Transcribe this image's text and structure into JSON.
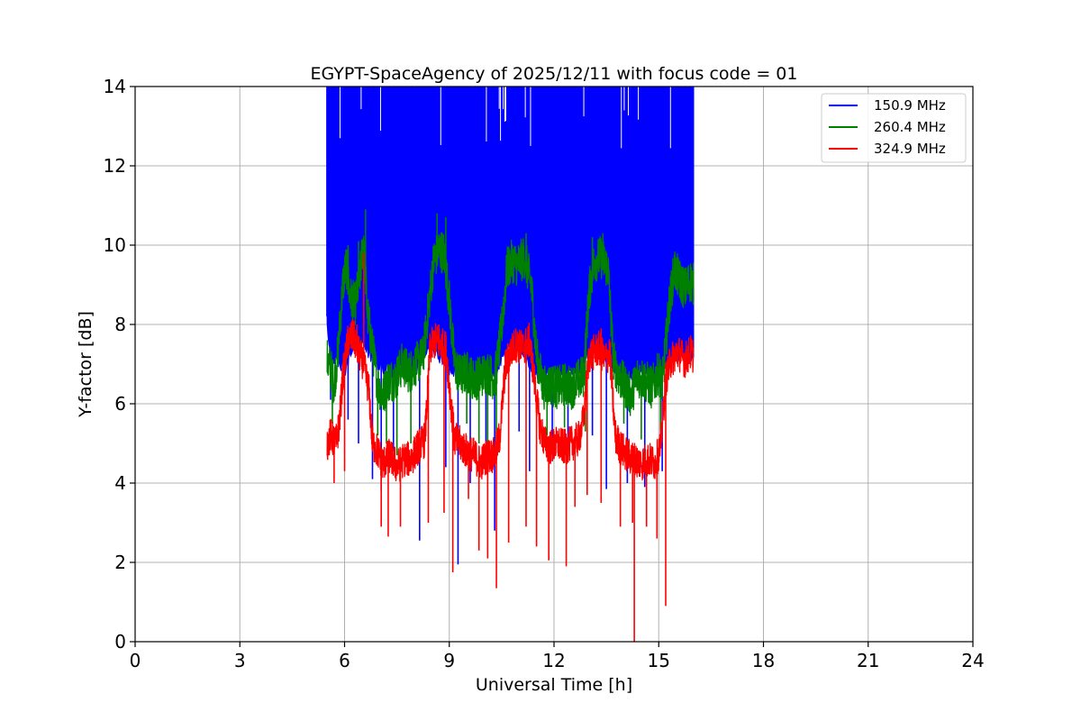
{
  "chart_data": {
    "type": "line",
    "title": "EGYPT-SpaceAgency of 2025/12/11 with focus code = 01",
    "xlabel": "Universal Time [h]",
    "ylabel": "Y-factor [dB]",
    "xlim": [
      0,
      24
    ],
    "ylim": [
      0,
      14
    ],
    "xticks": [
      0,
      3,
      6,
      9,
      12,
      15,
      18,
      21,
      24
    ],
    "yticks": [
      0,
      2,
      4,
      6,
      8,
      10,
      12,
      14
    ],
    "grid": true,
    "legend_position": "top-right",
    "series": [
      {
        "name": "150.9 MHz",
        "color": "#0000ff",
        "filled_band": true,
        "x_range": [
          5.5,
          16.0
        ],
        "upper": [
          [
            5.5,
            14.0
          ],
          [
            16.0,
            14.0
          ]
        ],
        "lower": [
          [
            5.5,
            8.3
          ],
          [
            5.6,
            7.1
          ],
          [
            5.8,
            7.3
          ],
          [
            6.0,
            7.0
          ],
          [
            6.3,
            7.6
          ],
          [
            6.6,
            7.6
          ],
          [
            6.9,
            7.1
          ],
          [
            7.2,
            7.0
          ],
          [
            7.5,
            7.0
          ],
          [
            7.8,
            7.1
          ],
          [
            8.1,
            7.1
          ],
          [
            8.4,
            7.6
          ],
          [
            8.7,
            7.4
          ],
          [
            9.0,
            7.0
          ],
          [
            9.3,
            6.9
          ],
          [
            9.6,
            7.0
          ],
          [
            9.9,
            6.9
          ],
          [
            10.2,
            6.9
          ],
          [
            10.5,
            7.3
          ],
          [
            10.8,
            7.6
          ],
          [
            11.1,
            7.4
          ],
          [
            11.4,
            7.0
          ],
          [
            11.7,
            6.9
          ],
          [
            12.0,
            6.9
          ],
          [
            12.3,
            6.9
          ],
          [
            12.6,
            7.0
          ],
          [
            12.9,
            7.3
          ],
          [
            13.2,
            7.5
          ],
          [
            13.5,
            7.3
          ],
          [
            13.8,
            7.0
          ],
          [
            14.1,
            6.9
          ],
          [
            14.4,
            6.9
          ],
          [
            14.7,
            6.9
          ],
          [
            15.0,
            6.9
          ],
          [
            15.3,
            7.2
          ],
          [
            15.6,
            7.4
          ],
          [
            16.0,
            7.4
          ]
        ],
        "dips": [
          [
            5.6,
            6.1
          ],
          [
            6.1,
            5.6
          ],
          [
            6.4,
            5.0
          ],
          [
            6.8,
            4.1
          ],
          [
            7.05,
            3.8
          ],
          [
            7.4,
            4.8
          ],
          [
            8.15,
            2.55
          ],
          [
            8.9,
            4.4
          ],
          [
            9.25,
            1.95
          ],
          [
            9.6,
            4.0
          ],
          [
            10.05,
            4.6
          ],
          [
            10.3,
            2.8
          ],
          [
            11.0,
            5.3
          ],
          [
            11.3,
            4.3
          ],
          [
            11.95,
            4.55
          ],
          [
            12.4,
            4.8
          ],
          [
            13.1,
            5.2
          ],
          [
            13.5,
            3.85
          ],
          [
            14.1,
            4.0
          ],
          [
            14.6,
            3.9
          ],
          [
            15.1,
            4.3
          ]
        ]
      },
      {
        "name": "260.4 MHz",
        "color": "#008000",
        "points": [
          [
            5.5,
            7.1
          ],
          [
            5.6,
            6.9
          ],
          [
            5.7,
            6.5
          ],
          [
            5.8,
            7.2
          ],
          [
            5.95,
            9.0
          ],
          [
            6.05,
            9.5
          ],
          [
            6.15,
            8.7
          ],
          [
            6.3,
            8.5
          ],
          [
            6.45,
            9.3
          ],
          [
            6.55,
            10.2
          ],
          [
            6.65,
            8.3
          ],
          [
            6.8,
            7.4
          ],
          [
            6.95,
            6.5
          ],
          [
            7.1,
            6.2
          ],
          [
            7.25,
            6.6
          ],
          [
            7.45,
            6.6
          ],
          [
            7.65,
            7.0
          ],
          [
            7.85,
            6.8
          ],
          [
            8.05,
            7.0
          ],
          [
            8.25,
            7.2
          ],
          [
            8.4,
            8.4
          ],
          [
            8.55,
            9.6
          ],
          [
            8.7,
            9.9
          ],
          [
            8.85,
            9.8
          ],
          [
            9.0,
            8.6
          ],
          [
            9.15,
            7.0
          ],
          [
            9.3,
            6.7
          ],
          [
            9.5,
            6.8
          ],
          [
            9.7,
            6.6
          ],
          [
            9.9,
            6.7
          ],
          [
            10.1,
            6.8
          ],
          [
            10.3,
            6.6
          ],
          [
            10.5,
            7.9
          ],
          [
            10.65,
            9.4
          ],
          [
            10.8,
            9.6
          ],
          [
            10.95,
            9.5
          ],
          [
            11.15,
            9.7
          ],
          [
            11.35,
            9.0
          ],
          [
            11.5,
            7.2
          ],
          [
            11.7,
            6.4
          ],
          [
            11.9,
            6.5
          ],
          [
            12.1,
            6.4
          ],
          [
            12.3,
            6.5
          ],
          [
            12.5,
            6.4
          ],
          [
            12.7,
            6.6
          ],
          [
            12.85,
            6.7
          ],
          [
            13.0,
            8.8
          ],
          [
            13.15,
            9.6
          ],
          [
            13.35,
            9.7
          ],
          [
            13.55,
            9.4
          ],
          [
            13.7,
            7.1
          ],
          [
            13.85,
            6.7
          ],
          [
            14.0,
            6.5
          ],
          [
            14.2,
            6.2
          ],
          [
            14.4,
            6.7
          ],
          [
            14.6,
            6.6
          ],
          [
            14.8,
            6.4
          ],
          [
            15.0,
            6.8
          ],
          [
            15.1,
            6.5
          ],
          [
            15.3,
            8.5
          ],
          [
            15.45,
            9.4
          ],
          [
            15.6,
            9.1
          ],
          [
            15.75,
            8.9
          ],
          [
            15.9,
            9.1
          ],
          [
            16.0,
            9.0
          ]
        ],
        "spikes": [
          [
            6.1,
            10.0
          ],
          [
            6.4,
            10.1
          ],
          [
            6.6,
            10.9
          ],
          [
            8.65,
            10.8
          ],
          [
            8.9,
            10.7
          ],
          [
            11.2,
            10.3
          ],
          [
            13.4,
            10.3
          ],
          [
            13.1,
            10.2
          ],
          [
            15.6,
            9.6
          ]
        ],
        "dips": [
          [
            5.65,
            5.5
          ],
          [
            6.95,
            5.2
          ],
          [
            7.2,
            5.0
          ],
          [
            7.5,
            4.7
          ],
          [
            7.9,
            5.0
          ],
          [
            9.5,
            5.5
          ],
          [
            9.85,
            5.0
          ],
          [
            10.1,
            4.8
          ],
          [
            10.35,
            5.0
          ],
          [
            11.8,
            5.2
          ],
          [
            12.3,
            5.4
          ],
          [
            12.9,
            5.3
          ],
          [
            14.0,
            5.5
          ],
          [
            14.5,
            5.1
          ],
          [
            15.05,
            5.3
          ]
        ]
      },
      {
        "name": "324.9 MHz",
        "color": "#ff0000",
        "points": [
          [
            5.5,
            5.0
          ],
          [
            5.6,
            5.2
          ],
          [
            5.75,
            5.0
          ],
          [
            5.85,
            5.5
          ],
          [
            5.95,
            6.7
          ],
          [
            6.1,
            7.6
          ],
          [
            6.25,
            7.7
          ],
          [
            6.4,
            7.3
          ],
          [
            6.55,
            7.0
          ],
          [
            6.7,
            6.3
          ],
          [
            6.8,
            5.0
          ],
          [
            6.95,
            4.8
          ],
          [
            7.1,
            4.5
          ],
          [
            7.3,
            4.7
          ],
          [
            7.5,
            4.4
          ],
          [
            7.7,
            4.6
          ],
          [
            7.9,
            4.6
          ],
          [
            8.1,
            4.9
          ],
          [
            8.3,
            5.1
          ],
          [
            8.45,
            7.4
          ],
          [
            8.6,
            7.6
          ],
          [
            8.75,
            7.5
          ],
          [
            8.9,
            7.4
          ],
          [
            9.05,
            6.0
          ],
          [
            9.15,
            5.1
          ],
          [
            9.3,
            5.0
          ],
          [
            9.5,
            4.8
          ],
          [
            9.7,
            4.7
          ],
          [
            9.9,
            4.5
          ],
          [
            10.1,
            4.7
          ],
          [
            10.3,
            4.7
          ],
          [
            10.45,
            5.2
          ],
          [
            10.6,
            6.9
          ],
          [
            10.75,
            7.3
          ],
          [
            10.9,
            7.5
          ],
          [
            11.1,
            7.4
          ],
          [
            11.3,
            7.6
          ],
          [
            11.45,
            6.5
          ],
          [
            11.6,
            5.4
          ],
          [
            11.75,
            5.0
          ],
          [
            11.9,
            4.9
          ],
          [
            12.1,
            5.0
          ],
          [
            12.3,
            4.9
          ],
          [
            12.5,
            5.0
          ],
          [
            12.7,
            5.1
          ],
          [
            12.85,
            5.6
          ],
          [
            13.0,
            7.2
          ],
          [
            13.15,
            7.3
          ],
          [
            13.3,
            7.4
          ],
          [
            13.45,
            7.1
          ],
          [
            13.6,
            7.3
          ],
          [
            13.75,
            5.2
          ],
          [
            13.9,
            4.9
          ],
          [
            14.1,
            4.7
          ],
          [
            14.3,
            4.6
          ],
          [
            14.5,
            4.5
          ],
          [
            14.7,
            4.6
          ],
          [
            14.9,
            4.5
          ],
          [
            15.05,
            4.9
          ],
          [
            15.2,
            6.6
          ],
          [
            15.35,
            7.1
          ],
          [
            15.55,
            7.3
          ],
          [
            15.75,
            7.1
          ],
          [
            15.9,
            7.3
          ],
          [
            16.0,
            7.2
          ]
        ],
        "spikes": [
          [
            6.35,
            8.0
          ],
          [
            6.55,
            9.8
          ],
          [
            8.7,
            8.0
          ],
          [
            11.05,
            7.8
          ],
          [
            13.35,
            7.9
          ],
          [
            15.5,
            7.4
          ]
        ],
        "dips": [
          [
            5.7,
            4.0
          ],
          [
            6.0,
            4.3
          ],
          [
            7.05,
            2.9
          ],
          [
            7.25,
            2.65
          ],
          [
            7.6,
            2.9
          ],
          [
            8.4,
            3.0
          ],
          [
            8.85,
            3.25
          ],
          [
            9.1,
            1.75
          ],
          [
            9.55,
            3.6
          ],
          [
            9.85,
            2.3
          ],
          [
            10.1,
            2.1
          ],
          [
            10.35,
            1.35
          ],
          [
            10.7,
            2.5
          ],
          [
            11.2,
            2.9
          ],
          [
            11.5,
            2.4
          ],
          [
            11.85,
            2.05
          ],
          [
            12.35,
            1.9
          ],
          [
            12.6,
            3.4
          ],
          [
            12.95,
            3.7
          ],
          [
            13.35,
            3.5
          ],
          [
            13.9,
            2.9
          ],
          [
            14.25,
            3.0
          ],
          [
            14.3,
            0.0
          ],
          [
            14.65,
            2.9
          ],
          [
            14.95,
            2.6
          ],
          [
            15.2,
            0.9
          ]
        ]
      }
    ]
  }
}
